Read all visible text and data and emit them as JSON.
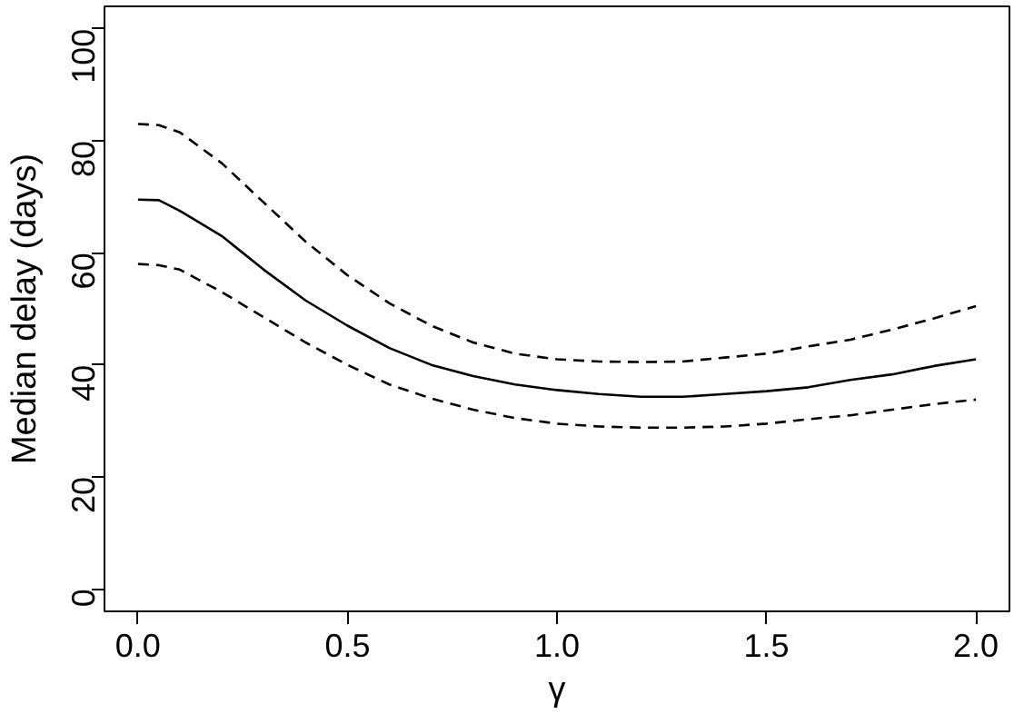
{
  "chart_data": {
    "type": "line",
    "xlabel": "γ",
    "ylabel": "Median delay (days)",
    "x": [
      0,
      0.05,
      0.1,
      0.2,
      0.3,
      0.4,
      0.5,
      0.6,
      0.7,
      0.8,
      0.9,
      1.0,
      1.1,
      1.2,
      1.3,
      1.4,
      1.5,
      1.6,
      1.7,
      1.8,
      1.9,
      2.0
    ],
    "series": [
      {
        "color": "#000000",
        "line_style": "solid",
        "values": [
          69.5,
          69.4,
          67.5,
          63,
          57,
          51.5,
          47,
          43,
          40,
          38,
          36.5,
          35.5,
          34.8,
          34.3,
          34.3,
          34.8,
          35.3,
          36,
          37.3,
          38.3,
          39.8,
          41
        ]
      },
      {
        "color": "#000000",
        "line_style": "dashed",
        "values": [
          83,
          82.8,
          81.5,
          76,
          69,
          62,
          56,
          51,
          47,
          44,
          42,
          41,
          40.6,
          40.5,
          40.6,
          41.3,
          42,
          43.3,
          44.5,
          46.3,
          48.3,
          50.5
        ]
      },
      {
        "color": "#000000",
        "line_style": "dashed",
        "values": [
          58,
          57.8,
          57,
          53,
          48.5,
          44,
          40,
          36.5,
          34,
          32,
          30.5,
          29.5,
          29,
          28.8,
          28.8,
          29,
          29.5,
          30.3,
          31,
          32,
          33,
          33.8
        ]
      }
    ],
    "xlim": [
      -0.08,
      2.08
    ],
    "ylim": [
      -4,
      104
    ],
    "xticks": [
      {
        "value": 0,
        "label": "0.0"
      },
      {
        "value": 0.5,
        "label": "0.5"
      },
      {
        "value": 1,
        "label": "1.0"
      },
      {
        "value": 1.5,
        "label": "1.5"
      },
      {
        "value": 2,
        "label": "2.0"
      }
    ],
    "yticks": [
      0,
      20,
      40,
      60,
      80,
      100
    ],
    "grid": false,
    "marker": "none"
  }
}
